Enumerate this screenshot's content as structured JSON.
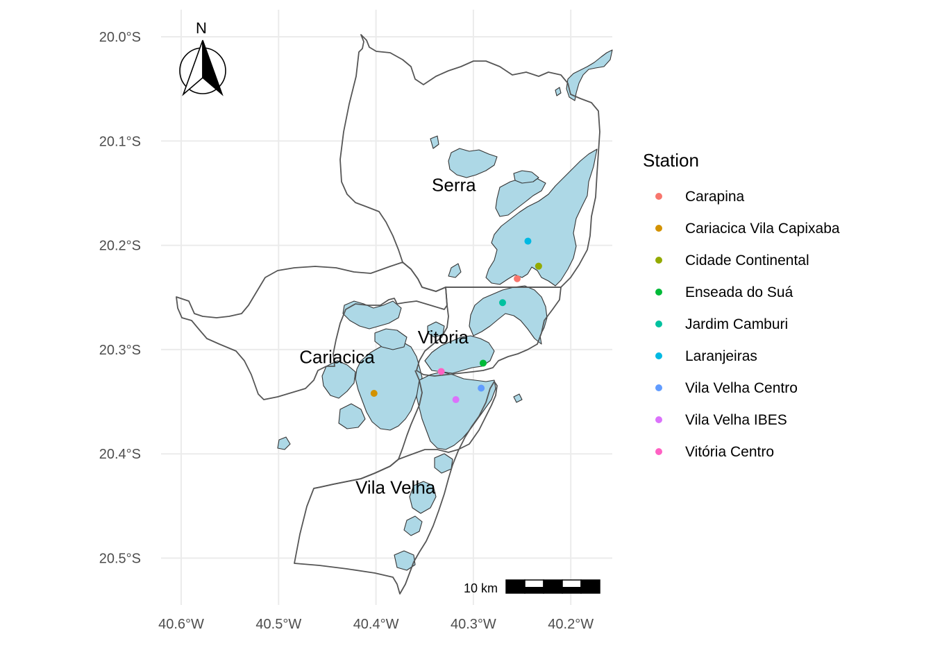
{
  "map": {
    "x_ticks": [
      {
        "lon": -40.6,
        "label": "40.6°W"
      },
      {
        "lon": -40.5,
        "label": "40.5°W"
      },
      {
        "lon": -40.4,
        "label": "40.4°W"
      },
      {
        "lon": -40.3,
        "label": "40.3°W"
      },
      {
        "lon": -40.2,
        "label": "40.2°W"
      }
    ],
    "y_ticks": [
      {
        "lat": -20.0,
        "label": "20.0°S"
      },
      {
        "lat": -20.1,
        "label": "20.1°S"
      },
      {
        "lat": -20.2,
        "label": "20.2°S"
      },
      {
        "lat": -20.3,
        "label": "20.3°S"
      },
      {
        "lat": -20.4,
        "label": "20.4°S"
      },
      {
        "lat": -20.5,
        "label": "20.5°S"
      }
    ],
    "municipality_labels": [
      {
        "name": "Serra",
        "lon": -40.32,
        "lat": -20.142
      },
      {
        "name": "Vitoria",
        "lon": -40.331,
        "lat": -20.288
      },
      {
        "name": "Cariacica",
        "lon": -40.44,
        "lat": -20.307
      },
      {
        "name": "Vila Velha",
        "lon": -40.38,
        "lat": -20.432
      }
    ],
    "north_arrow_label": "N",
    "scale_bar_label": "10 km",
    "urban_fill_color": "#add8e6",
    "boundary_color": "#555555"
  },
  "legend": {
    "title": "Station",
    "items": [
      {
        "name": "Carapina",
        "color": "#F8766D"
      },
      {
        "name": "Cariacica Vila Capixaba",
        "color": "#D39200"
      },
      {
        "name": "Cidade Continental",
        "color": "#93AA00"
      },
      {
        "name": "Enseada do Suá",
        "color": "#00BA38"
      },
      {
        "name": "Jardim Camburi",
        "color": "#00C19F"
      },
      {
        "name": "Laranjeiras",
        "color": "#00B9E3"
      },
      {
        "name": "Vila Velha Centro",
        "color": "#619CFF"
      },
      {
        "name": "Vila Velha IBES",
        "color": "#DB72FB"
      },
      {
        "name": "Vitória Centro",
        "color": "#FF61C3"
      }
    ]
  },
  "chart_data": {
    "type": "scatter",
    "title": "",
    "xlabel": "",
    "ylabel": "",
    "xlim": [
      -40.625,
      -40.155
    ],
    "ylim": [
      -20.545,
      -19.985
    ],
    "grid": true,
    "legend_position": "right",
    "series": [
      {
        "name": "Carapina",
        "lon": -40.255,
        "lat": -20.232
      },
      {
        "name": "Cariacica Vila Capixaba",
        "lon": -40.402,
        "lat": -20.342
      },
      {
        "name": "Cidade Continental",
        "lon": -40.233,
        "lat": -20.22
      },
      {
        "name": "Enseada do Suá",
        "lon": -40.29,
        "lat": -20.313
      },
      {
        "name": "Jardim Camburi",
        "lon": -40.27,
        "lat": -20.255
      },
      {
        "name": "Laranjeiras",
        "lon": -40.244,
        "lat": -20.196
      },
      {
        "name": "Vila Velha Centro",
        "lon": -40.292,
        "lat": -20.337
      },
      {
        "name": "Vila Velha IBES",
        "lon": -40.318,
        "lat": -20.348
      },
      {
        "name": "Vitória Centro",
        "lon": -40.333,
        "lat": -20.321
      }
    ]
  }
}
